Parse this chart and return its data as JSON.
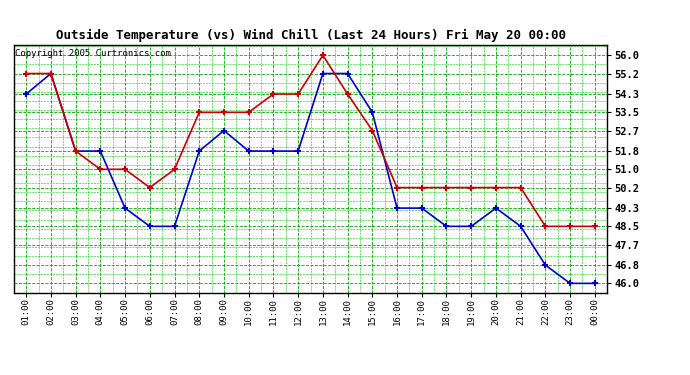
{
  "title": "Outside Temperature (vs) Wind Chill (Last 24 Hours) Fri May 20 00:00",
  "copyright": "Copyright 2005 Curtronics.com",
  "x_labels": [
    "01:00",
    "02:00",
    "03:00",
    "04:00",
    "05:00",
    "06:00",
    "07:00",
    "08:00",
    "09:00",
    "10:00",
    "11:00",
    "12:00",
    "13:00",
    "14:00",
    "15:00",
    "16:00",
    "17:00",
    "18:00",
    "19:00",
    "20:00",
    "21:00",
    "22:00",
    "23:00",
    "00:00"
  ],
  "outside_temp": [
    54.3,
    55.2,
    51.8,
    51.8,
    49.3,
    48.5,
    48.5,
    51.8,
    52.7,
    51.8,
    51.8,
    51.8,
    55.2,
    55.2,
    53.5,
    49.3,
    49.3,
    48.5,
    48.5,
    49.3,
    48.5,
    46.8,
    46.0,
    46.0
  ],
  "wind_chill": [
    55.2,
    55.2,
    51.8,
    51.0,
    51.0,
    50.2,
    51.0,
    53.5,
    53.5,
    53.5,
    54.3,
    54.3,
    56.0,
    54.3,
    52.7,
    50.2,
    50.2,
    50.2,
    50.2,
    50.2,
    50.2,
    48.5,
    48.5,
    48.5
  ],
  "temp_color": "#0000cc",
  "chill_color": "#cc0000",
  "bg_color": "#ffffff",
  "grid_color_major": "#00aa00",
  "grid_color_minor": "#00cc00",
  "ylim_min": 45.6,
  "ylim_max": 56.45,
  "yticks": [
    46.0,
    46.8,
    47.7,
    48.5,
    49.3,
    50.2,
    51.0,
    51.8,
    52.7,
    53.5,
    54.3,
    55.2,
    56.0
  ]
}
